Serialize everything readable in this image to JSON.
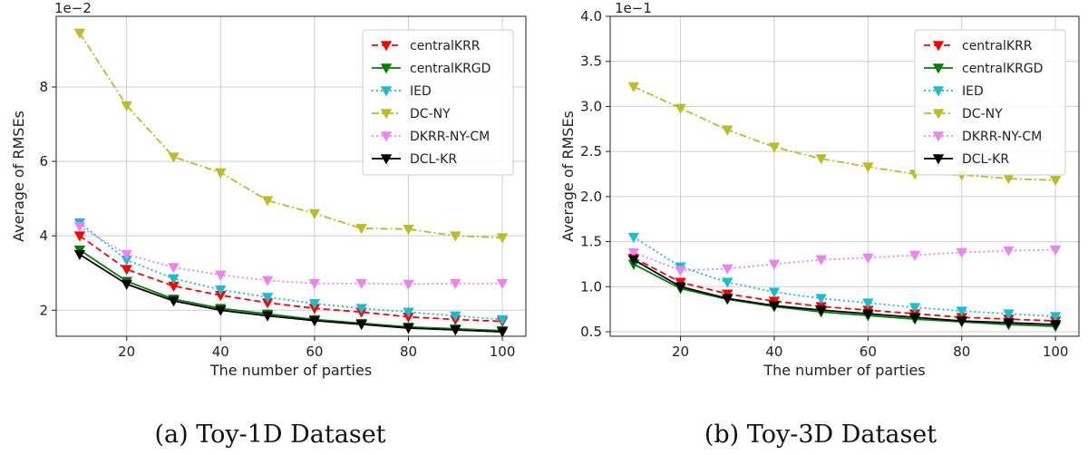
{
  "chart_data": [
    {
      "type": "line",
      "caption": "(a) Toy-1D Dataset",
      "xlabel": "The number of parties",
      "ylabel": "Average of RMSEs",
      "y_offset_label": "1e−2",
      "x": [
        10,
        20,
        30,
        40,
        50,
        60,
        70,
        80,
        90,
        100
      ],
      "xlim": [
        5,
        105
      ],
      "ylim": [
        1.3,
        9.9
      ],
      "xticks": [
        20,
        40,
        60,
        80,
        100
      ],
      "yticks": [
        2,
        4,
        6,
        8
      ],
      "grid": true,
      "legend_position": "top-right",
      "series": [
        {
          "name": "centralKRR",
          "color": "#ff0000",
          "dash": "dashed",
          "values": [
            4.0,
            3.1,
            2.65,
            2.4,
            2.2,
            2.05,
            1.95,
            1.82,
            1.75,
            1.7
          ]
        },
        {
          "name": "centralKRGD",
          "color": "#008000",
          "dash": "solid",
          "values": [
            3.62,
            2.78,
            2.3,
            2.05,
            1.9,
            1.75,
            1.65,
            1.55,
            1.5,
            1.45
          ]
        },
        {
          "name": "IED",
          "color": "#17becf",
          "dash": "dotted",
          "values": [
            4.35,
            3.35,
            2.85,
            2.55,
            2.35,
            2.18,
            2.05,
            1.95,
            1.85,
            1.75
          ]
        },
        {
          "name": "DC-NY",
          "color": "#bcbd22",
          "dash": "dashdot",
          "values": [
            9.45,
            7.5,
            6.12,
            5.7,
            4.95,
            4.6,
            4.2,
            4.18,
            4.0,
            3.95
          ]
        },
        {
          "name": "DKRR-NY-CM",
          "color": "#ee82ee",
          "dash": "dotted",
          "values": [
            4.25,
            3.5,
            3.15,
            2.95,
            2.8,
            2.72,
            2.72,
            2.7,
            2.72,
            2.72
          ]
        },
        {
          "name": "DCL-KR",
          "color": "#000000",
          "dash": "solid",
          "values": [
            3.5,
            2.7,
            2.25,
            2.0,
            1.85,
            1.72,
            1.62,
            1.52,
            1.47,
            1.42
          ]
        }
      ]
    },
    {
      "type": "line",
      "caption": "(b) Toy-3D Dataset",
      "xlabel": "The number of parties",
      "ylabel": "Average of RMSEs",
      "y_offset_label": "1e−1",
      "x": [
        10,
        20,
        30,
        40,
        50,
        60,
        70,
        80,
        90,
        100
      ],
      "xlim": [
        5,
        105
      ],
      "ylim": [
        0.45,
        4.0
      ],
      "xticks": [
        20,
        40,
        60,
        80,
        100
      ],
      "yticks": [
        0.5,
        1.0,
        1.5,
        2.0,
        2.5,
        3.0,
        3.5,
        4.0
      ],
      "ytick_labels": [
        "0.5",
        "1.0",
        "1.5",
        "2.0",
        "2.5",
        "3.0",
        "3.5",
        "4.0"
      ],
      "grid": true,
      "legend_position": "top-right",
      "series": [
        {
          "name": "centralKRR",
          "color": "#ff0000",
          "dash": "dashed",
          "values": [
            1.32,
            1.05,
            0.92,
            0.84,
            0.78,
            0.74,
            0.7,
            0.66,
            0.64,
            0.62
          ]
        },
        {
          "name": "centralKRGD",
          "color": "#008000",
          "dash": "solid",
          "values": [
            1.25,
            0.98,
            0.86,
            0.78,
            0.72,
            0.68,
            0.64,
            0.61,
            0.58,
            0.56
          ]
        },
        {
          "name": "IED",
          "color": "#17becf",
          "dash": "dotted",
          "values": [
            1.55,
            1.22,
            1.05,
            0.94,
            0.87,
            0.82,
            0.77,
            0.73,
            0.7,
            0.67
          ]
        },
        {
          "name": "DC-NY",
          "color": "#bcbd22",
          "dash": "dashdot",
          "values": [
            3.22,
            2.98,
            2.74,
            2.55,
            2.42,
            2.33,
            2.25,
            2.24,
            2.2,
            2.18
          ]
        },
        {
          "name": "DKRR-NY-CM",
          "color": "#ee82ee",
          "dash": "dotted",
          "values": [
            1.38,
            1.18,
            1.2,
            1.25,
            1.3,
            1.32,
            1.35,
            1.38,
            1.4,
            1.41
          ]
        },
        {
          "name": "DCL-KR",
          "color": "#000000",
          "dash": "solid",
          "values": [
            1.3,
            1.0,
            0.87,
            0.79,
            0.74,
            0.7,
            0.66,
            0.62,
            0.6,
            0.58
          ]
        }
      ]
    }
  ]
}
